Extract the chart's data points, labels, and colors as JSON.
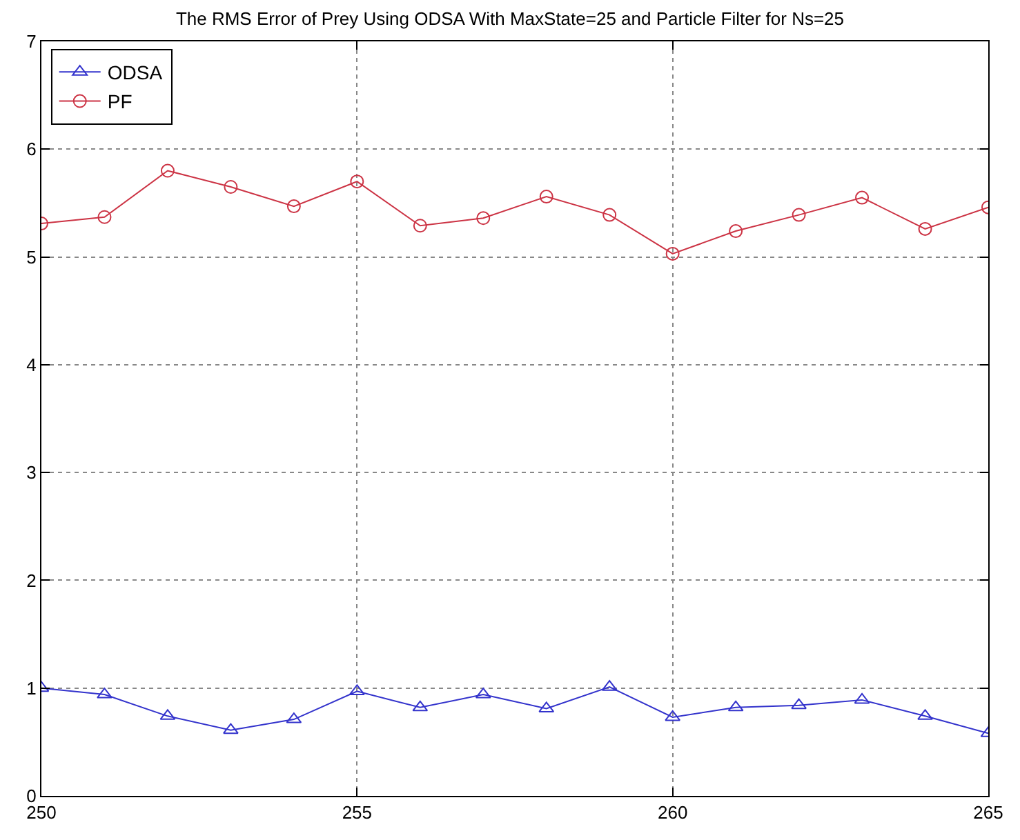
{
  "chart_data": {
    "type": "line",
    "title": "The RMS Error of Prey Using ODSA With MaxState=25 and Particle Filter for Ns=25",
    "x": [
      250,
      251,
      252,
      253,
      254,
      255,
      256,
      257,
      258,
      259,
      260,
      261,
      262,
      263,
      264,
      265
    ],
    "series": [
      {
        "name": "ODSA",
        "color": "#3333cc",
        "marker": "triangle",
        "values": [
          1.0,
          0.94,
          0.74,
          0.61,
          0.71,
          0.97,
          0.82,
          0.94,
          0.81,
          1.01,
          0.73,
          0.82,
          0.84,
          0.89,
          0.74,
          0.58
        ]
      },
      {
        "name": "PF",
        "color": "#cc3344",
        "marker": "circle",
        "values": [
          5.31,
          5.37,
          5.8,
          5.65,
          5.47,
          5.7,
          5.29,
          5.36,
          5.56,
          5.39,
          5.03,
          5.24,
          5.39,
          5.55,
          5.26,
          5.46
        ]
      }
    ],
    "xlim": [
      250,
      265
    ],
    "xticks": [
      250,
      255,
      260,
      265
    ],
    "ylim": [
      0,
      7
    ],
    "yticks": [
      0,
      1,
      2,
      3,
      4,
      5,
      6,
      7
    ],
    "grid": true,
    "legend": "top left",
    "line_style": "solid"
  }
}
